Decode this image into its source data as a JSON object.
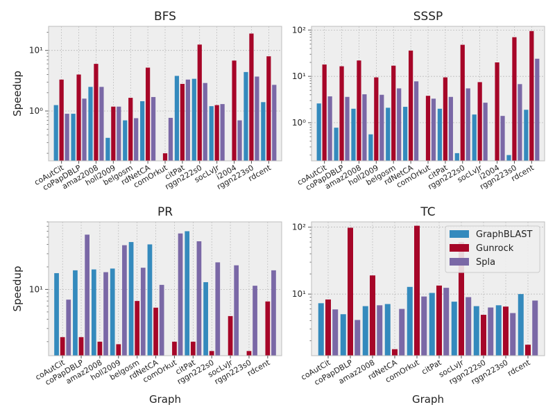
{
  "colors": {
    "GraphBLAST": "#348ABD",
    "Gunrock": "#A60628",
    "Spla": "#7A68A6"
  },
  "legend": {
    "entries": [
      "GraphBLAST",
      "Gunrock",
      "Spla"
    ],
    "placement": "upper-right of TC panel"
  },
  "chart_data": [
    {
      "type": "bar",
      "title": "BFS",
      "ylabel": "Speedup",
      "xlabel": "",
      "yscale": "log",
      "ylim": [
        0.15,
        25
      ],
      "yticks": [
        {
          "value": 1,
          "label": "10⁰"
        },
        {
          "value": 10,
          "label": "10¹"
        }
      ],
      "grid": true,
      "categories": [
        "coAutCit",
        "coPapDBLP",
        "amaz2008",
        "holl2009",
        "belgosm",
        "rdNetCA",
        "comOrkut",
        "citPat",
        "rggn222s0",
        "socLvJr",
        "i2004",
        "rggn223s0",
        "rdcent"
      ],
      "series": [
        {
          "name": "GraphBLAST",
          "values": [
            1.25,
            0.9,
            2.5,
            0.36,
            0.7,
            1.45,
            null,
            3.8,
            3.4,
            1.2,
            null,
            4.4,
            1.4
          ]
        },
        {
          "name": "Gunrock",
          "values": [
            3.3,
            4.0,
            6.0,
            1.18,
            1.65,
            5.2,
            0.2,
            2.8,
            12.5,
            1.25,
            6.8,
            19.0,
            8.0
          ]
        },
        {
          "name": "Spla",
          "values": [
            0.9,
            1.6,
            2.5,
            1.18,
            0.76,
            1.7,
            0.77,
            3.3,
            2.9,
            1.3,
            0.7,
            3.7,
            2.7
          ]
        }
      ]
    },
    {
      "type": "bar",
      "title": "SSSP",
      "ylabel": "",
      "xlabel": "",
      "yscale": "log",
      "ylim": [
        0.15,
        120
      ],
      "yticks": [
        {
          "value": 1,
          "label": "10⁰"
        },
        {
          "value": 10,
          "label": "10¹"
        },
        {
          "value": 100,
          "label": "10²"
        }
      ],
      "grid": true,
      "categories": [
        "coAutCit",
        "coPapDBLP",
        "amaz2008",
        "holl2009",
        "belgosm",
        "rdNetCA",
        "comOrkut",
        "citPat",
        "rggn222s0",
        "socLvJr",
        "i2004",
        "rggn223s0",
        "rdcent"
      ],
      "series": [
        {
          "name": "GraphBLAST",
          "values": [
            2.6,
            0.78,
            2.0,
            0.56,
            2.1,
            2.2,
            null,
            2.0,
            0.22,
            1.5,
            null,
            0.2,
            1.9
          ]
        },
        {
          "name": "Gunrock",
          "values": [
            18.0,
            16.5,
            22.0,
            9.5,
            17.0,
            36.0,
            3.8,
            9.5,
            48.0,
            7.5,
            20.0,
            70.0,
            95.0
          ]
        },
        {
          "name": "Spla",
          "values": [
            3.7,
            3.6,
            4.1,
            4.0,
            5.5,
            7.8,
            3.3,
            3.6,
            5.5,
            2.7,
            1.4,
            6.8,
            24.0
          ]
        }
      ]
    },
    {
      "type": "bar",
      "title": "PR",
      "ylabel": "Speedup",
      "xlabel": "Graph",
      "yscale": "log",
      "ylim": [
        1.3,
        80
      ],
      "yticks": [
        {
          "value": 10,
          "label": "10¹"
        }
      ],
      "grid": true,
      "categories": [
        "coAutCit",
        "coPapDBLP",
        "amaz2008",
        "holl2009",
        "belgosm",
        "rdNetCA",
        "comOrkut",
        "citPat",
        "rggn222s0",
        "socLvJr",
        "rggn223s0",
        "rdcent"
      ],
      "series": [
        {
          "name": "GraphBLAST",
          "values": [
            16.5,
            18.0,
            18.5,
            19.0,
            43.0,
            40.0,
            null,
            60.0,
            12.5,
            null,
            null,
            null
          ]
        },
        {
          "name": "Gunrock",
          "values": [
            2.3,
            2.3,
            2.0,
            1.85,
            7.0,
            5.7,
            2.0,
            2.0,
            1.5,
            4.4,
            1.5,
            6.9
          ]
        },
        {
          "name": "Spla",
          "values": [
            7.3,
            54.0,
            17.0,
            39.0,
            19.5,
            11.5,
            56.0,
            44.0,
            23.0,
            21.0,
            11.2,
            18.0
          ]
        }
      ]
    },
    {
      "type": "bar",
      "title": "TC",
      "ylabel": "",
      "xlabel": "Graph",
      "yscale": "log",
      "ylim": [
        1.2,
        120
      ],
      "yticks": [
        {
          "value": 10,
          "label": "10¹"
        },
        {
          "value": 100,
          "label": "10²"
        }
      ],
      "grid": true,
      "categories": [
        "coAutCit",
        "coPapDBLP",
        "amaz2008",
        "rdNetCA",
        "comOrkut",
        "citPat",
        "socLvJr",
        "rggn222s0",
        "rggn223s0",
        "rdcent"
      ],
      "series": [
        {
          "name": "GraphBLAST",
          "values": [
            7.3,
            5.0,
            6.6,
            7.1,
            12.8,
            10.4,
            7.7,
            6.6,
            6.8,
            10.0
          ]
        },
        {
          "name": "Gunrock",
          "values": [
            8.3,
            98.0,
            19.0,
            1.5,
            105.0,
            13.4,
            60.0,
            4.9,
            6.5,
            1.75
          ]
        },
        {
          "name": "Spla",
          "values": [
            5.9,
            4.1,
            6.8,
            6.0,
            9.2,
            12.4,
            9.0,
            6.3,
            5.2,
            8.0
          ]
        }
      ]
    }
  ]
}
